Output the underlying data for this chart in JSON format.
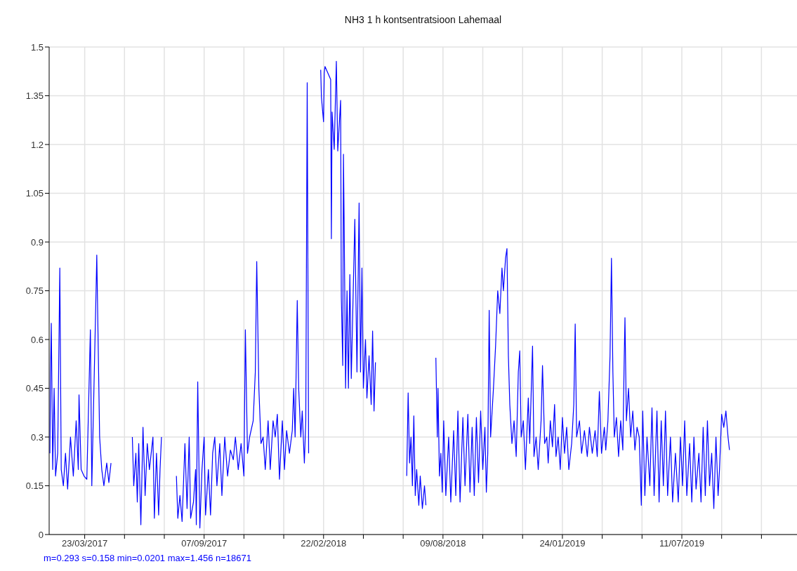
{
  "chart_data": {
    "type": "line",
    "title": "NH3 1 h kontsentratsioon Lahemaal",
    "annotations": [
      "m=0.293 s=0.158 min=0.0201 max=1.456 n=18671"
    ],
    "grid": true,
    "xlim": [
      "2017-02-01",
      "2019-12-20"
    ],
    "xticks": [
      {
        "value": "2017-03-23",
        "label": "23/03/2017"
      },
      {
        "value": "2017-05-18",
        "label": null
      },
      {
        "value": "2017-07-13",
        "label": null
      },
      {
        "value": "2017-09-07",
        "label": "07/09/2017"
      },
      {
        "value": "2017-11-02",
        "label": null
      },
      {
        "value": "2017-12-28",
        "label": null
      },
      {
        "value": "2018-02-22",
        "label": "22/02/2018"
      },
      {
        "value": "2018-04-19",
        "label": null
      },
      {
        "value": "2018-06-14",
        "label": null
      },
      {
        "value": "2018-08-09",
        "label": "09/08/2018"
      },
      {
        "value": "2018-10-04",
        "label": null
      },
      {
        "value": "2018-11-29",
        "label": null
      },
      {
        "value": "2019-01-24",
        "label": "24/01/2019"
      },
      {
        "value": "2019-03-21",
        "label": null
      },
      {
        "value": "2019-05-16",
        "label": null
      },
      {
        "value": "2019-07-11",
        "label": "11/07/2019"
      },
      {
        "value": "2019-09-05",
        "label": null
      },
      {
        "value": "2019-10-31",
        "label": null
      }
    ],
    "ylim": [
      0,
      1.5
    ],
    "yticks": [
      0,
      0.15,
      0.3,
      0.45,
      0.6,
      0.75,
      0.9,
      1.05,
      1.2,
      1.35,
      1.5
    ],
    "x": [
      "2017-02-02",
      "2017-02-03",
      "2017-02-04",
      "2017-02-06",
      "2017-02-08",
      "2017-02-10",
      "2017-02-13",
      "2017-02-16",
      "2017-02-18",
      "2017-02-21",
      "2017-02-24",
      "2017-02-27",
      "2017-03-03",
      "2017-03-07",
      "2017-03-11",
      "2017-03-14",
      "2017-03-15",
      "2017-03-18",
      "2017-03-22",
      "2017-03-26",
      "2017-03-31",
      "2017-04-02",
      "2017-04-08",
      "2017-04-09",
      "2017-04-13",
      "2017-04-16",
      "2017-04-19",
      "2017-04-23",
      "2017-04-26",
      "2017-04-29",
      "2017-05-15",
      "2017-05-29",
      "2017-05-31",
      "2017-06-03",
      "2017-06-05",
      "2017-06-07",
      "2017-06-10",
      "2017-06-13",
      "2017-06-16",
      "2017-06-19",
      "2017-06-22",
      "2017-06-27",
      "2017-06-29",
      "2017-07-02",
      "2017-07-05",
      "2017-07-07",
      "2017-07-09",
      "2017-07-20",
      "2017-07-30",
      "2017-08-01",
      "2017-08-04",
      "2017-08-07",
      "2017-08-11",
      "2017-08-14",
      "2017-08-17",
      "2017-08-19",
      "2017-08-23",
      "2017-08-26",
      "2017-08-27",
      "2017-08-29",
      "2017-09-01",
      "2017-09-04",
      "2017-09-07",
      "2017-09-09",
      "2017-09-13",
      "2017-09-16",
      "2017-09-19",
      "2017-09-22",
      "2017-09-25",
      "2017-09-29",
      "2017-10-02",
      "2017-10-06",
      "2017-10-10",
      "2017-10-14",
      "2017-10-18",
      "2017-10-21",
      "2017-10-25",
      "2017-10-29",
      "2017-11-02",
      "2017-11-04",
      "2017-11-07",
      "2017-11-10",
      "2017-11-15",
      "2017-11-18",
      "2017-11-20",
      "2017-11-23",
      "2017-11-26",
      "2017-11-29",
      "2017-12-02",
      "2017-12-06",
      "2017-12-09",
      "2017-12-13",
      "2017-12-16",
      "2017-12-19",
      "2017-12-22",
      "2017-12-26",
      "2017-12-29",
      "2018-01-01",
      "2018-01-05",
      "2018-01-09",
      "2018-01-11",
      "2018-01-13",
      "2018-01-16",
      "2018-01-18",
      "2018-01-21",
      "2018-01-23",
      "2018-01-26",
      "2018-01-28",
      "2018-01-30",
      "2018-02-01",
      "2018-02-08",
      "2018-02-18",
      "2018-02-19",
      "2018-02-22",
      "2018-02-23",
      "2018-02-24",
      "2018-03-04",
      "2018-03-05",
      "2018-03-06",
      "2018-03-09",
      "2018-03-12",
      "2018-03-14",
      "2018-03-18",
      "2018-03-19",
      "2018-03-21",
      "2018-03-22",
      "2018-03-23",
      "2018-03-25",
      "2018-03-27",
      "2018-03-29",
      "2018-03-31",
      "2018-04-02",
      "2018-04-07",
      "2018-04-10",
      "2018-04-13",
      "2018-04-15",
      "2018-04-17",
      "2018-04-19",
      "2018-04-22",
      "2018-04-24",
      "2018-04-27",
      "2018-04-30",
      "2018-05-02",
      "2018-05-04",
      "2018-05-06",
      "2018-06-01",
      "2018-06-19",
      "2018-06-21",
      "2018-06-23",
      "2018-06-25",
      "2018-06-27",
      "2018-06-29",
      "2018-07-01",
      "2018-07-03",
      "2018-07-06",
      "2018-07-08",
      "2018-07-11",
      "2018-07-14",
      "2018-07-16",
      "2018-07-25",
      "2018-07-30",
      "2018-08-01",
      "2018-08-02",
      "2018-08-04",
      "2018-08-06",
      "2018-08-08",
      "2018-08-10",
      "2018-08-13",
      "2018-08-17",
      "2018-08-20",
      "2018-08-24",
      "2018-08-27",
      "2018-08-30",
      "2018-09-02",
      "2018-09-06",
      "2018-09-09",
      "2018-09-13",
      "2018-09-16",
      "2018-09-19",
      "2018-09-22",
      "2018-09-25",
      "2018-09-28",
      "2018-10-01",
      "2018-10-04",
      "2018-10-07",
      "2018-10-09",
      "2018-10-11",
      "2018-10-13",
      "2018-10-15",
      "2018-10-19",
      "2018-10-22",
      "2018-10-25",
      "2018-10-28",
      "2018-10-31",
      "2018-11-02",
      "2018-11-05",
      "2018-11-07",
      "2018-11-09",
      "2018-11-11",
      "2018-11-14",
      "2018-11-17",
      "2018-11-20",
      "2018-11-23",
      "2018-11-25",
      "2018-11-27",
      "2018-11-30",
      "2018-12-03",
      "2018-12-07",
      "2018-12-09",
      "2018-12-13",
      "2018-12-15",
      "2018-12-18",
      "2018-12-21",
      "2018-12-25",
      "2018-12-27",
      "2018-12-30",
      "2019-01-02",
      "2019-01-04",
      "2019-01-07",
      "2019-01-10",
      "2019-01-13",
      "2019-01-15",
      "2019-01-18",
      "2019-01-21",
      "2019-01-24",
      "2019-01-27",
      "2019-01-30",
      "2019-02-02",
      "2019-02-06",
      "2019-02-09",
      "2019-02-11",
      "2019-02-13",
      "2019-02-17",
      "2019-02-20",
      "2019-02-24",
      "2019-02-28",
      "2019-03-03",
      "2019-03-07",
      "2019-03-11",
      "2019-03-14",
      "2019-03-17",
      "2019-03-20",
      "2019-03-24",
      "2019-03-26",
      "2019-03-29",
      "2019-04-01",
      "2019-04-03",
      "2019-04-05",
      "2019-04-07",
      "2019-04-10",
      "2019-04-13",
      "2019-04-16",
      "2019-04-19",
      "2019-04-21",
      "2019-04-22",
      "2019-04-24",
      "2019-04-27",
      "2019-04-30",
      "2019-05-03",
      "2019-05-06",
      "2019-05-09",
      "2019-05-12",
      "2019-05-15",
      "2019-05-17",
      "2019-05-20",
      "2019-05-23",
      "2019-05-27",
      "2019-05-30",
      "2019-06-02",
      "2019-06-06",
      "2019-06-09",
      "2019-06-12",
      "2019-06-15",
      "2019-06-18",
      "2019-06-21",
      "2019-06-25",
      "2019-06-28",
      "2019-07-02",
      "2019-07-06",
      "2019-07-09",
      "2019-07-12",
      "2019-07-15",
      "2019-07-18",
      "2019-07-22",
      "2019-07-25",
      "2019-07-28",
      "2019-07-31",
      "2019-08-04",
      "2019-08-07",
      "2019-08-10",
      "2019-08-13",
      "2019-08-16",
      "2019-08-19",
      "2019-08-22",
      "2019-08-25",
      "2019-08-28",
      "2019-08-31",
      "2019-09-02",
      "2019-09-05",
      "2019-09-08",
      "2019-09-11",
      "2019-09-14",
      "2019-09-16"
    ],
    "series": [
      {
        "color": "#0000ff",
        "values": [
          0.25,
          0.5,
          0.65,
          0.2,
          0.45,
          0.18,
          0.25,
          0.82,
          0.2,
          0.15,
          0.25,
          0.14,
          0.3,
          0.18,
          0.35,
          0.2,
          0.43,
          0.2,
          0.18,
          0.17,
          0.63,
          0.15,
          0.75,
          0.86,
          0.3,
          0.2,
          0.15,
          0.22,
          0.16,
          0.22,
          null,
          0.3,
          0.15,
          0.25,
          0.1,
          0.28,
          0.03,
          0.33,
          0.12,
          0.28,
          0.2,
          0.3,
          0.05,
          0.25,
          0.06,
          0.2,
          0.3,
          null,
          0.18,
          0.05,
          0.12,
          0.04,
          0.28,
          0.08,
          0.3,
          0.05,
          0.1,
          0.2,
          0.03,
          0.47,
          0.02,
          0.2,
          0.3,
          0.06,
          0.2,
          0.06,
          0.25,
          0.3,
          0.15,
          0.28,
          0.12,
          0.3,
          0.18,
          0.26,
          0.23,
          0.3,
          0.2,
          0.28,
          0.18,
          0.63,
          0.25,
          0.3,
          0.35,
          0.5,
          0.84,
          0.45,
          0.28,
          0.3,
          0.2,
          0.35,
          0.2,
          0.35,
          0.3,
          0.37,
          0.17,
          0.35,
          0.2,
          0.32,
          0.25,
          0.32,
          0.45,
          0.3,
          0.72,
          0.45,
          0.3,
          0.38,
          0.22,
          0.35,
          1.39,
          0.25,
          null,
          1.43,
          1.345,
          1.27,
          1.42,
          1.44,
          1.4,
          0.91,
          1.3,
          1.185,
          1.456,
          1.18,
          1.336,
          0.73,
          0.52,
          1.17,
          0.95,
          0.45,
          0.75,
          0.45,
          0.8,
          0.48,
          0.97,
          0.5,
          1.02,
          0.5,
          0.82,
          0.45,
          0.6,
          0.42,
          0.55,
          0.4,
          0.626,
          0.38,
          0.53,
          null,
          0.18,
          0.436,
          0.22,
          0.3,
          0.15,
          0.365,
          0.12,
          0.2,
          0.09,
          0.18,
          0.08,
          0.15,
          0.09,
          null,
          0.544,
          0.3,
          0.45,
          0.18,
          0.25,
          0.13,
          0.35,
          0.12,
          0.3,
          0.1,
          0.32,
          0.12,
          0.38,
          0.1,
          0.36,
          0.15,
          0.37,
          0.13,
          0.33,
          0.12,
          0.36,
          0.16,
          0.38,
          0.2,
          0.33,
          0.13,
          0.25,
          0.69,
          0.3,
          0.45,
          0.58,
          0.75,
          0.68,
          0.82,
          0.75,
          0.85,
          0.88,
          0.55,
          0.4,
          0.28,
          0.35,
          0.24,
          0.5,
          0.565,
          0.3,
          0.35,
          0.2,
          0.42,
          0.28,
          0.58,
          0.24,
          0.3,
          0.2,
          0.35,
          0.52,
          0.28,
          0.3,
          0.22,
          0.35,
          0.27,
          0.4,
          0.24,
          0.3,
          0.2,
          0.36,
          0.25,
          0.33,
          0.2,
          0.28,
          0.4,
          0.648,
          0.3,
          0.35,
          0.25,
          0.32,
          0.24,
          0.33,
          0.25,
          0.32,
          0.24,
          0.44,
          0.25,
          0.33,
          0.26,
          0.35,
          0.55,
          0.85,
          0.5,
          0.3,
          0.36,
          0.24,
          0.35,
          0.26,
          0.55,
          0.667,
          0.35,
          0.45,
          0.3,
          0.38,
          0.26,
          0.33,
          0.3,
          0.09,
          0.38,
          0.12,
          0.3,
          0.15,
          0.39,
          0.12,
          0.38,
          0.1,
          0.35,
          0.15,
          0.38,
          0.12,
          0.3,
          0.1,
          0.25,
          0.1,
          0.3,
          0.15,
          0.35,
          0.12,
          0.28,
          0.1,
          0.3,
          0.14,
          0.25,
          0.1,
          0.33,
          0.12,
          0.35,
          0.15,
          0.25,
          0.08,
          0.3,
          0.12,
          0.2,
          0.37,
          0.33,
          0.38,
          0.3,
          0.26
        ]
      }
    ]
  }
}
